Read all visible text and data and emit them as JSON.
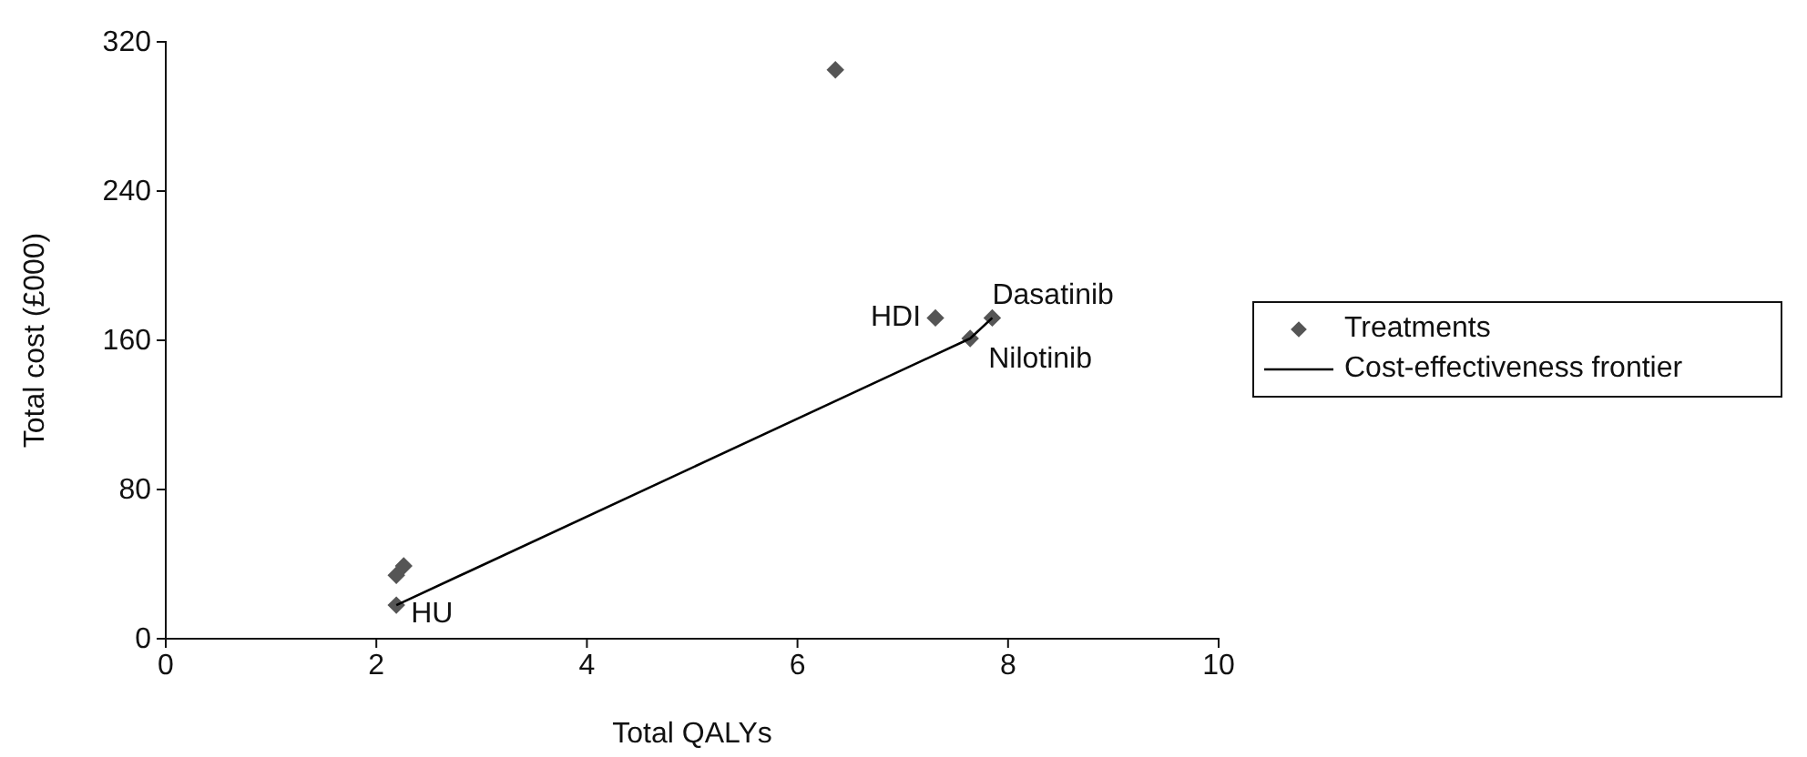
{
  "chart_data": {
    "type": "scatter",
    "xlabel": "Total QALYs",
    "ylabel": "Total cost (£000)",
    "xlim": [
      0,
      10
    ],
    "xticks": [
      0,
      2,
      4,
      6,
      8,
      10
    ],
    "ylim": [
      0,
      320
    ],
    "yticks": [
      0,
      80,
      160,
      240,
      320
    ],
    "grid": false,
    "legend": "right",
    "series": [
      {
        "name": "Treatments",
        "marker": "diamond",
        "color": "#555555",
        "x": [
          2.19,
          2.19,
          2.26,
          6.36,
          7.31,
          7.64,
          7.85
        ],
        "values": [
          18,
          34,
          39,
          305,
          172,
          161,
          172
        ]
      },
      {
        "name": "Cost-effectiveness frontier",
        "type": "line",
        "marker": "none",
        "color": "#000000",
        "line_style": "solid",
        "x": [
          2.19,
          7.64,
          7.85
        ],
        "values": [
          18,
          161,
          172
        ]
      }
    ],
    "annotations": [
      {
        "text": "HU",
        "x": 2.19,
        "y": 18
      },
      {
        "text": "HDI",
        "x": 7.31,
        "y": 172
      },
      {
        "text": "Dasatinib",
        "x": 7.85,
        "y": 172
      },
      {
        "text": "Nilotinib",
        "x": 7.64,
        "y": 161
      }
    ]
  }
}
